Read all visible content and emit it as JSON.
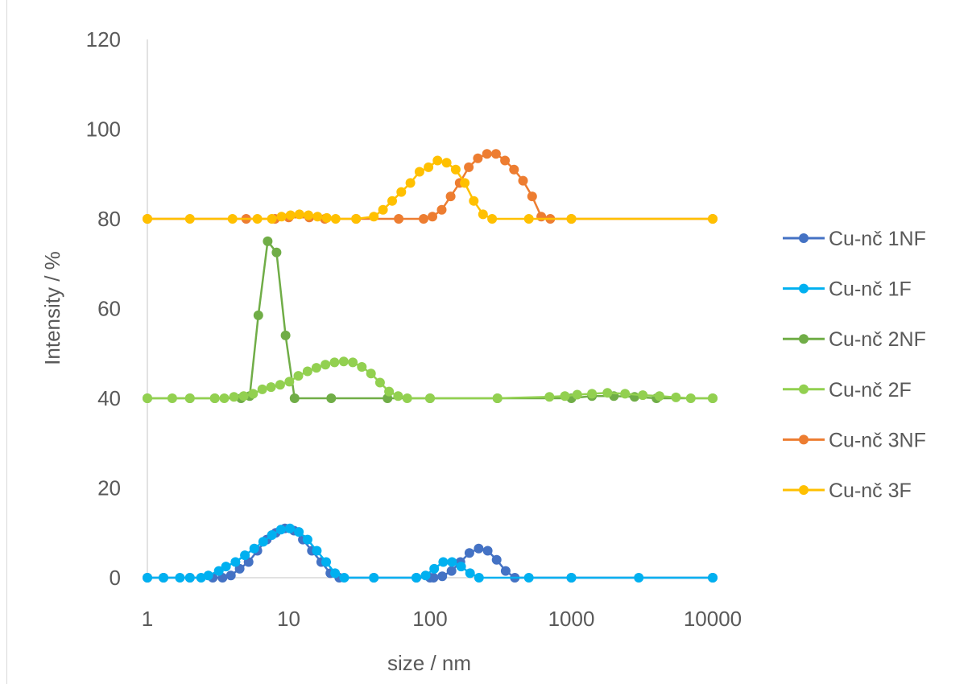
{
  "chart_data": {
    "type": "scatter",
    "xlabel": "size / nm",
    "ylabel": "Intensity / %",
    "xscale": "log",
    "xlim": [
      1,
      10000
    ],
    "ylim": [
      0,
      120
    ],
    "xticks": [
      1,
      10,
      100,
      1000,
      10000
    ],
    "xtick_labels": [
      "1",
      "10",
      "100",
      "1000",
      "10000"
    ],
    "yticks": [
      0,
      20,
      40,
      60,
      80,
      100,
      120
    ],
    "ytick_labels": [
      "0",
      "20",
      "40",
      "60",
      "80",
      "100",
      "120"
    ],
    "grid": false,
    "legend_position": "right",
    "series": [
      {
        "name": "Cu-nč 1NF",
        "color": "#4472C4",
        "points": [
          [
            1,
            0
          ],
          [
            1.3,
            0
          ],
          [
            2,
            0
          ],
          [
            2.9,
            0
          ],
          [
            3.4,
            0
          ],
          [
            3.9,
            0.5
          ],
          [
            4.5,
            2
          ],
          [
            5.2,
            3.5
          ],
          [
            6,
            6
          ],
          [
            7,
            8.5
          ],
          [
            8.1,
            10
          ],
          [
            9.4,
            11
          ],
          [
            10.9,
            10.5
          ],
          [
            12.6,
            8.5
          ],
          [
            14.6,
            6
          ],
          [
            17,
            3.5
          ],
          [
            19.7,
            1
          ],
          [
            22.8,
            0
          ],
          [
            40,
            0
          ],
          [
            80,
            0
          ],
          [
            100,
            0
          ],
          [
            106,
            0
          ],
          [
            122,
            0.3
          ],
          [
            142,
            1.5
          ],
          [
            164,
            3.5
          ],
          [
            190,
            5.5
          ],
          [
            221,
            6.5
          ],
          [
            256,
            6
          ],
          [
            296,
            4
          ],
          [
            343,
            1.5
          ],
          [
            398,
            0
          ],
          [
            1000,
            0
          ],
          [
            10000,
            0
          ]
        ]
      },
      {
        "name": "Cu-nč 1F",
        "color": "#00B0F0",
        "points": [
          [
            1,
            0
          ],
          [
            1.3,
            0
          ],
          [
            1.7,
            0
          ],
          [
            2,
            0
          ],
          [
            2.4,
            0
          ],
          [
            2.7,
            0.5
          ],
          [
            3.2,
            1.5
          ],
          [
            3.6,
            2.5
          ],
          [
            4.2,
            3.5
          ],
          [
            4.9,
            5
          ],
          [
            5.7,
            6.5
          ],
          [
            6.6,
            8
          ],
          [
            7.6,
            9.5
          ],
          [
            8.8,
            10.7
          ],
          [
            10.2,
            11
          ],
          [
            11.8,
            10.2
          ],
          [
            13.6,
            8.5
          ],
          [
            15.8,
            6
          ],
          [
            18.4,
            3.5
          ],
          [
            21.3,
            1
          ],
          [
            24.7,
            0
          ],
          [
            40,
            0
          ],
          [
            80,
            0
          ],
          [
            93,
            0.5
          ],
          [
            107,
            2
          ],
          [
            124,
            3.5
          ],
          [
            143,
            3.5
          ],
          [
            166,
            2.5
          ],
          [
            192,
            1
          ],
          [
            222,
            0
          ],
          [
            500,
            0
          ],
          [
            1000,
            0
          ],
          [
            3000,
            0
          ],
          [
            10000,
            0
          ]
        ]
      },
      {
        "name": "Cu-nč 2NF",
        "color": "#70AD47",
        "points": [
          [
            1,
            40
          ],
          [
            2,
            40
          ],
          [
            3,
            40
          ],
          [
            4.6,
            40
          ],
          [
            5.3,
            40.5
          ],
          [
            6.1,
            58.5
          ],
          [
            7.1,
            75
          ],
          [
            8.2,
            72.5
          ],
          [
            9.5,
            54
          ],
          [
            11,
            40
          ],
          [
            20,
            40
          ],
          [
            50,
            40
          ],
          [
            100,
            40
          ],
          [
            300,
            40
          ],
          [
            1000,
            40
          ],
          [
            1400,
            40.5
          ],
          [
            2000,
            40.5
          ],
          [
            2800,
            40.3
          ],
          [
            4000,
            40
          ],
          [
            10000,
            40
          ]
        ]
      },
      {
        "name": "Cu-nč 2F",
        "color": "#92D050",
        "points": [
          [
            1,
            40
          ],
          [
            1.5,
            40
          ],
          [
            2,
            40
          ],
          [
            3,
            40
          ],
          [
            3.5,
            40
          ],
          [
            4.1,
            40.3
          ],
          [
            4.8,
            40.5
          ],
          [
            5.6,
            41
          ],
          [
            6.5,
            42
          ],
          [
            7.5,
            42.5
          ],
          [
            8.7,
            43
          ],
          [
            10.1,
            43.7
          ],
          [
            11.7,
            45
          ],
          [
            13.6,
            46
          ],
          [
            15.7,
            46.8
          ],
          [
            18.2,
            47.5
          ],
          [
            21.1,
            48
          ],
          [
            24.5,
            48.2
          ],
          [
            28.4,
            48
          ],
          [
            32.9,
            47
          ],
          [
            38.2,
            45.5
          ],
          [
            44.3,
            43.5
          ],
          [
            51.3,
            41.5
          ],
          [
            59.5,
            40.5
          ],
          [
            69,
            40
          ],
          [
            100,
            40
          ],
          [
            300,
            40
          ],
          [
            700,
            40.3
          ],
          [
            900,
            40.5
          ],
          [
            1100,
            40.8
          ],
          [
            1400,
            41
          ],
          [
            1800,
            41.2
          ],
          [
            2400,
            41
          ],
          [
            3200,
            40.7
          ],
          [
            4200,
            40.5
          ],
          [
            5500,
            40.2
          ],
          [
            7000,
            40
          ],
          [
            10000,
            40
          ]
        ]
      },
      {
        "name": "Cu-nč 3NF",
        "color": "#ED7D31",
        "points": [
          [
            1,
            80
          ],
          [
            5,
            80
          ],
          [
            8,
            80
          ],
          [
            10,
            80.3
          ],
          [
            14,
            80.3
          ],
          [
            18,
            80
          ],
          [
            30,
            80
          ],
          [
            60,
            80
          ],
          [
            90,
            80
          ],
          [
            104,
            80.5
          ],
          [
            121,
            82
          ],
          [
            140,
            85
          ],
          [
            162,
            88
          ],
          [
            188,
            91.5
          ],
          [
            218,
            93.5
          ],
          [
            253,
            94.5
          ],
          [
            293,
            94.5
          ],
          [
            339,
            93
          ],
          [
            393,
            91
          ],
          [
            455,
            88.5
          ],
          [
            528,
            85
          ],
          [
            612,
            80.5
          ],
          [
            709,
            80
          ],
          [
            1000,
            80
          ],
          [
            10000,
            80
          ]
        ]
      },
      {
        "name": "Cu-nč 3F",
        "color": "#FFC000",
        "points": [
          [
            1,
            80
          ],
          [
            2,
            80
          ],
          [
            4,
            80
          ],
          [
            6,
            80
          ],
          [
            7.6,
            80
          ],
          [
            8.9,
            80.5
          ],
          [
            10.3,
            80.8
          ],
          [
            11.9,
            81
          ],
          [
            13.8,
            80.8
          ],
          [
            16,
            80.5
          ],
          [
            18.6,
            80.2
          ],
          [
            21.5,
            80
          ],
          [
            30,
            80
          ],
          [
            40,
            80.5
          ],
          [
            46.5,
            82
          ],
          [
            54,
            84
          ],
          [
            62.6,
            86
          ],
          [
            72.6,
            88
          ],
          [
            84.2,
            90.5
          ],
          [
            97.6,
            91.5
          ],
          [
            113,
            93
          ],
          [
            131,
            92.5
          ],
          [
            152,
            91
          ],
          [
            176,
            88
          ],
          [
            204,
            84
          ],
          [
            237,
            81
          ],
          [
            275,
            80
          ],
          [
            500,
            80
          ],
          [
            1000,
            80
          ],
          [
            10000,
            80
          ]
        ]
      }
    ]
  }
}
